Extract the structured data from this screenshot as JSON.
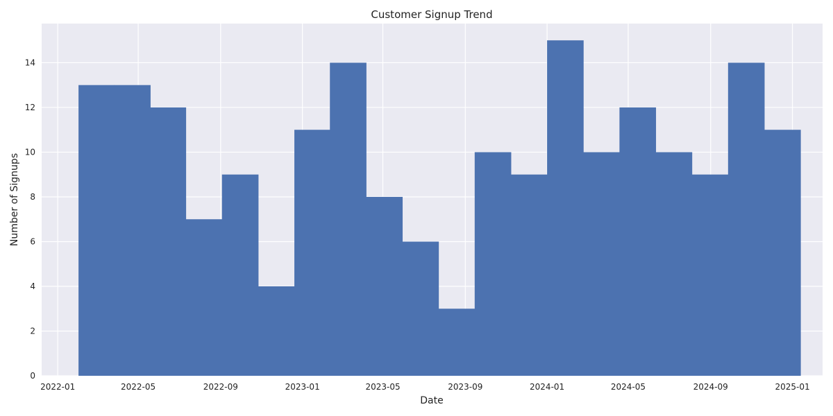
{
  "chart_data": {
    "type": "bar",
    "title": "Customer Signup Trend",
    "xlabel": "Date",
    "ylabel": "Number of Signups",
    "x_tick_labels": [
      "2022-01",
      "2022-05",
      "2022-09",
      "2023-01",
      "2023-05",
      "2023-09",
      "2024-01",
      "2024-05",
      "2024-09",
      "2025-01"
    ],
    "y_tick_labels": [
      "0",
      "2",
      "4",
      "6",
      "8",
      "10",
      "12",
      "14"
    ],
    "xlim": [
      "2021-12-08",
      "2025-02-15"
    ],
    "ylim": [
      0,
      15.75
    ],
    "bins": [
      {
        "start": "2022-02-01",
        "end": "2022-03-26",
        "value": 13
      },
      {
        "start": "2022-03-26",
        "end": "2022-05-19",
        "value": 13
      },
      {
        "start": "2022-05-19",
        "end": "2022-07-11",
        "value": 12
      },
      {
        "start": "2022-07-11",
        "end": "2022-09-03",
        "value": 7
      },
      {
        "start": "2022-09-03",
        "end": "2022-10-27",
        "value": 9
      },
      {
        "start": "2022-10-27",
        "end": "2022-12-20",
        "value": 4
      },
      {
        "start": "2022-12-20",
        "end": "2023-02-11",
        "value": 11
      },
      {
        "start": "2023-02-11",
        "end": "2023-04-06",
        "value": 14
      },
      {
        "start": "2023-04-06",
        "end": "2023-05-30",
        "value": 8
      },
      {
        "start": "2023-05-30",
        "end": "2023-07-23",
        "value": 6
      },
      {
        "start": "2023-07-23",
        "end": "2023-09-15",
        "value": 3
      },
      {
        "start": "2023-09-15",
        "end": "2023-11-08",
        "value": 10
      },
      {
        "start": "2023-11-08",
        "end": "2024-01-01",
        "value": 9
      },
      {
        "start": "2024-01-01",
        "end": "2024-02-24",
        "value": 15
      },
      {
        "start": "2024-02-24",
        "end": "2024-04-18",
        "value": 10
      },
      {
        "start": "2024-04-18",
        "end": "2024-06-11",
        "value": 12
      },
      {
        "start": "2024-06-11",
        "end": "2024-08-04",
        "value": 10
      },
      {
        "start": "2024-08-04",
        "end": "2024-09-27",
        "value": 9
      },
      {
        "start": "2024-09-27",
        "end": "2024-11-20",
        "value": 14
      },
      {
        "start": "2024-11-20",
        "end": "2025-01-13",
        "value": 11
      }
    ],
    "grid": true,
    "colors": {
      "bar": "#4c72b0",
      "plot_background": "#eaeaf2",
      "grid": "#ffffff"
    }
  }
}
